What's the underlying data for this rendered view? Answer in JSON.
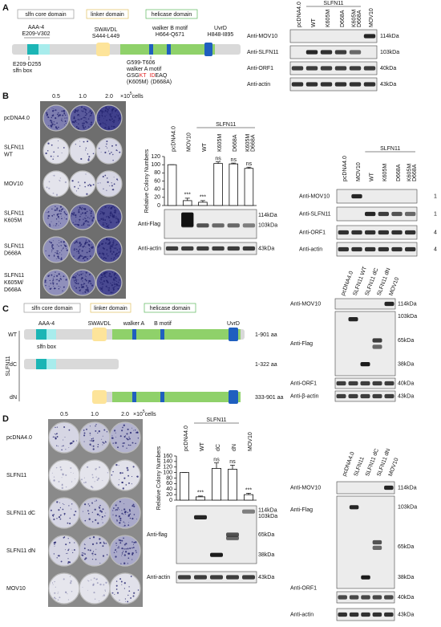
{
  "panel_labels": [
    "A",
    "B",
    "C",
    "D"
  ],
  "panel_a": {
    "domains": [
      "slfn core domain",
      "linker domain",
      "helicase domain"
    ],
    "aaa4": [
      "AAA-4",
      "E209-V302"
    ],
    "linker": [
      "SWAVDL",
      "S444-L449"
    ],
    "walker_b": [
      "walker B motif",
      "H664-Q671"
    ],
    "uvrd": [
      "UvrD",
      "H848-I895"
    ],
    "slfn_box": [
      "E209-D255",
      "slfn box"
    ],
    "walker_a": [
      "G599-T606",
      "walker A motif"
    ],
    "sequence": [
      "GSG",
      "KT",
      "ID",
      "EAQ"
    ],
    "mutations": [
      "(K605M)",
      "(D668A)"
    ],
    "blot": {
      "group": "SLFN11",
      "lanes": [
        "pcDNA4.0",
        "WT",
        "K605M",
        "D668A",
        [
          "K605M",
          "D668A"
        ],
        "MOV10"
      ],
      "rows": [
        {
          "label": "Anti-MOV10",
          "markers": [
            "114kDa"
          ]
        },
        {
          "label": "Anti-SLFN11",
          "markers": [
            "103kDa"
          ]
        },
        {
          "label": "Anti-ORF1",
          "markers": [
            "40kDa"
          ]
        },
        {
          "label": "Anti-actin",
          "markers": [
            "43kDa"
          ]
        }
      ]
    }
  },
  "panel_b": {
    "plates": {
      "doses": [
        "0.5",
        "1.0",
        "2.0"
      ],
      "unit": [
        "×10",
        "5",
        "cells"
      ],
      "rows": [
        [
          "pcDNA4.0"
        ],
        [
          "SLFN11",
          "WT"
        ],
        [
          "MOV10"
        ],
        [
          "SLFN11",
          "K605M"
        ],
        [
          "SLFN11",
          "D668A"
        ],
        [
          "SLFN11",
          "K605M/",
          "D668A"
        ]
      ]
    },
    "flag_blot": {
      "rows": [
        {
          "label": "Anti-Flag",
          "markers": [
            "114kDa",
            "103kDa"
          ]
        },
        {
          "label": "Anti-actin",
          "markers": [
            "43kDa"
          ]
        }
      ]
    },
    "blot": {
      "group": "SLFN11",
      "lanes": [
        "pcDNA4.0",
        "MOV10",
        "WT",
        "K605M",
        "D668A",
        [
          "K605M",
          "D668A"
        ]
      ],
      "rows": [
        {
          "label": "Anti-MOV10",
          "markers": [
            "1"
          ]
        },
        {
          "label": "Anti-SLFN11",
          "markers": [
            "1"
          ]
        },
        {
          "label": "Anti-ORF1",
          "markers": [
            "4"
          ]
        },
        {
          "label": "Anti-actin",
          "markers": [
            "4"
          ]
        }
      ]
    }
  },
  "panel_c": {
    "domains": [
      "slfn core domain",
      "linker domain",
      "helicase domain"
    ],
    "motifs": [
      "AAA-4",
      "slfn box",
      "SWAVDL",
      "walker A",
      "B motif",
      "UvrD"
    ],
    "protein": "SLFN11",
    "constructs": [
      {
        "name": "WT",
        "range": "1-901 aa"
      },
      {
        "name": "dC",
        "range": "1-322 aa"
      },
      {
        "name": "dN",
        "range": "333-901 aa"
      }
    ],
    "blot": {
      "lanes": [
        "pcDNA4.0",
        "SLFN11 WT",
        "SLFN11 dC",
        "SLFN11 dN",
        "MOV10"
      ],
      "rows": [
        {
          "label": "Anti-MOV10",
          "markers": [
            "114kDa"
          ]
        },
        {
          "label": "Anti-Flag",
          "markers": [
            "103kDa",
            "65kDa",
            "38kDa"
          ]
        },
        {
          "label": "Anti-ORF1",
          "markers": [
            "40kDa"
          ]
        },
        {
          "label": "Anti-β-actin",
          "markers": [
            "43kDa"
          ]
        }
      ]
    }
  },
  "panel_d": {
    "plates": {
      "doses": [
        "0.5",
        "1.0",
        "2.0"
      ],
      "unit": [
        "×10",
        "5",
        "cells"
      ],
      "rows": [
        [
          "pcDNA4.0"
        ],
        [
          "SLFN11"
        ],
        [
          "SLFN11 dC"
        ],
        [
          "SLFN11 dN"
        ],
        [
          "MOV10"
        ]
      ]
    },
    "flag_blot": {
      "rows": [
        {
          "label": "Anti-flag",
          "markers": [
            "114kDa",
            "103kDa",
            "65kDa",
            "38kDa"
          ]
        },
        {
          "label": "Anti-actin",
          "markers": [
            "43kDa"
          ]
        }
      ]
    },
    "blot": {
      "lanes": [
        "pcDNA4.0",
        "SLFN11",
        "SLFN11 dC",
        "SLFN11 dN",
        "MOV10"
      ],
      "rows": [
        {
          "label": "Anti-MOV10",
          "markers": [
            "114kDa"
          ]
        },
        {
          "label": "Anti-Flag",
          "markers": [
            "103kDa",
            "65kDa",
            "38kDa"
          ]
        },
        {
          "label": "Anti-ORF1",
          "markers": [
            "40kDa"
          ]
        },
        {
          "label": "Anti-actin",
          "markers": [
            "43kDa"
          ]
        }
      ]
    }
  },
  "chart_data": [
    {
      "type": "bar",
      "y_label": "Relative Colony Numbers",
      "group_label": "SLFN11",
      "categories": [
        "pcDNA4.0",
        "MOV10",
        "WT",
        "K605M",
        "D668A",
        [
          "K605M",
          "D668A"
        ]
      ],
      "values": [
        100,
        12,
        8,
        103,
        102,
        91
      ],
      "errors": [
        0,
        6,
        4,
        4,
        2,
        3
      ],
      "annotations": [
        null,
        "***",
        "***",
        "ns",
        "ns",
        "ns"
      ],
      "color": "#ffffff",
      "ylim": [
        0,
        120
      ],
      "yticks": [
        0,
        20,
        40,
        60,
        80,
        100,
        120
      ]
    },
    {
      "type": "bar",
      "y_label": "Relative Colony Numbers",
      "group_label": "SLFN11",
      "categories": [
        "pcDNA4.0",
        "WT",
        "dC",
        "dN",
        "MOV10"
      ],
      "values": [
        100,
        12,
        115,
        112,
        20
      ],
      "errors": [
        0,
        3,
        20,
        15,
        5
      ],
      "annotations": [
        null,
        "***",
        "ns",
        "ns",
        "***"
      ],
      "color": "#ffffff",
      "ylim": [
        0,
        160
      ],
      "yticks": [
        0,
        20,
        40,
        60,
        80,
        100,
        120,
        140,
        160
      ]
    }
  ]
}
